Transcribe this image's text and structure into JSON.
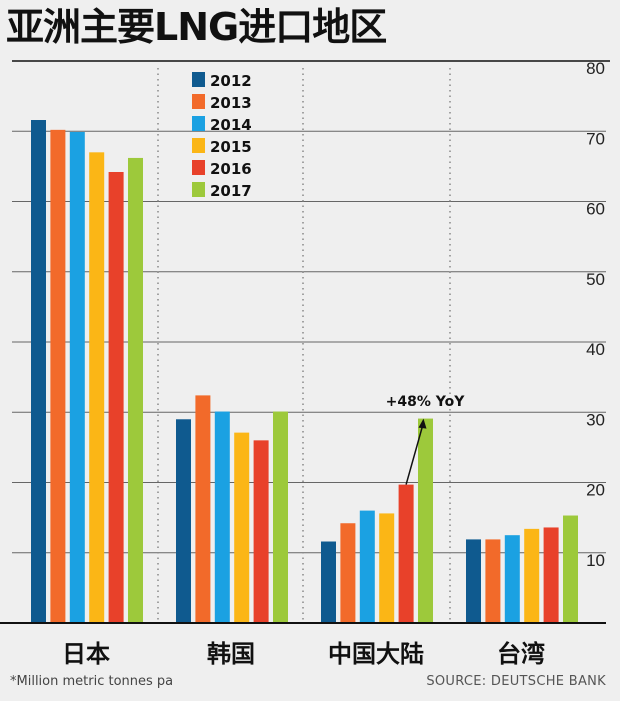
{
  "chart_data": {
    "type": "bar",
    "title": "亚洲主要LNG进口地区",
    "categories": [
      "日本",
      "韩国",
      "中国大陆",
      "台湾"
    ],
    "series": [
      {
        "name": "2012",
        "color": "#0f5a8f",
        "values": [
          71.6,
          29.0,
          11.6,
          11.9
        ]
      },
      {
        "name": "2013",
        "color": "#f26a2a",
        "values": [
          70.2,
          32.4,
          14.2,
          11.9
        ]
      },
      {
        "name": "2014",
        "color": "#1ba1e2",
        "values": [
          69.9,
          30.1,
          16.0,
          12.5
        ]
      },
      {
        "name": "2015",
        "color": "#fbb616",
        "values": [
          67.0,
          27.1,
          15.6,
          13.4
        ]
      },
      {
        "name": "2016",
        "color": "#e8412a",
        "values": [
          64.2,
          26.0,
          19.7,
          13.6
        ]
      },
      {
        "name": "2017",
        "color": "#9dc93b",
        "values": [
          66.2,
          30.1,
          29.1,
          15.3
        ]
      }
    ],
    "ylim": [
      0,
      80
    ],
    "yticks": [
      "10",
      "20",
      "30",
      "40",
      "50",
      "60",
      "70",
      "80"
    ],
    "y_axis_side": "right",
    "grid": true,
    "legend": "top-center",
    "annotation": "+48% YoY",
    "footnote": "*Million metric tonnes pa",
    "source": "SOURCE: DEUTSCHE BANK"
  }
}
